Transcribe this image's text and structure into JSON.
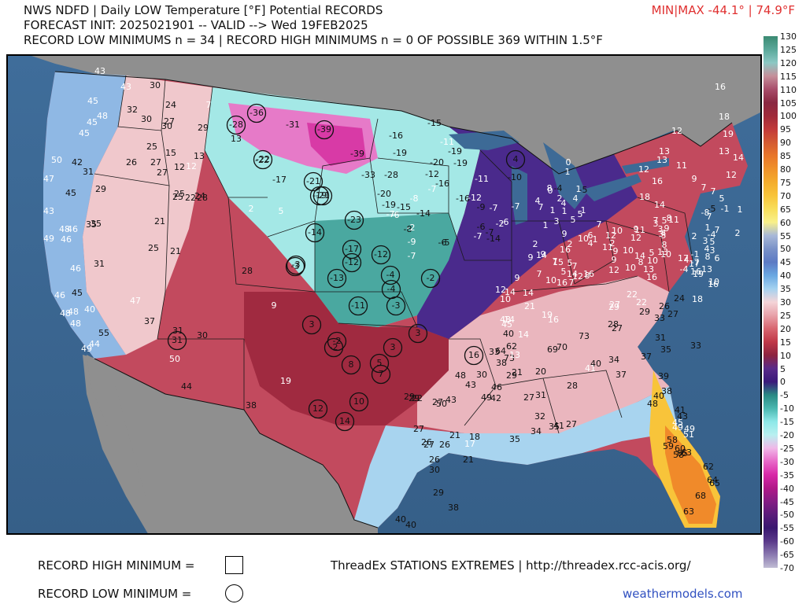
{
  "header": {
    "title": "NWS NDFD | Daily LOW Temperature [°F] Potential RECORDS",
    "forecast_line": "FORECAST INIT: 2025021901 -- VALID --> Wed 19FEB2025",
    "record_line": "RECORD LOW MINIMUMS n = 34 | RECORD HIGH MINIMUMS n = 0 OF POSSIBLE 369 WITHIN 1.5°F",
    "minmax": "MIN|MAX -44.1° | 74.9°F"
  },
  "legend": {
    "record_high_label": "RECORD HIGH MINIMUM =",
    "record_low_label": "RECORD LOW MINIMUM =",
    "credit": "ThreadEx STATIONS EXTREMES | http://threadex.rcc-acis.org/",
    "brand": "weathermodels.com"
  },
  "colorbar": {
    "ticks": [
      "130",
      "125",
      "120",
      "115",
      "110",
      "105",
      "100",
      "95",
      "90",
      "85",
      "80",
      "75",
      "70",
      "65",
      "60",
      "55",
      "50",
      "45",
      "40",
      "35",
      "30",
      "25",
      "20",
      "15",
      "10",
      "5",
      "0",
      "-5",
      "-10",
      "-15",
      "-20",
      "-25",
      "-30",
      "-35",
      "-40",
      "-45",
      "-50",
      "-55",
      "-60",
      "-65",
      "-70"
    ],
    "colors": [
      "#3a8a72",
      "#5aa89a",
      "#8cc8c4",
      "#c58f9a",
      "#a84d6a",
      "#8a2842",
      "#a02a3a",
      "#c23a3a",
      "#d45a32",
      "#e8762a",
      "#f0922a",
      "#f4ad2c",
      "#f8c43a",
      "#f8de5a",
      "#f8f08a",
      "#a8b8d8",
      "#7a92c8",
      "#5c7ac4",
      "#6aa8e2",
      "#a4d2f0",
      "#f4d4d8",
      "#e8a2aa",
      "#d86670",
      "#c03848",
      "#8e2440",
      "#5a2a8a",
      "#3a1a7a",
      "#2a8a84",
      "#4ab8b0",
      "#8ee8e8",
      "#b8f0f0",
      "#f0b8e8",
      "#e868c8",
      "#d828a8",
      "#b01888",
      "#841c84",
      "#5a1c7a",
      "#3a1870",
      "#5a3a8a",
      "#8a78b0",
      "#c0bcd4"
    ]
  },
  "stations": [
    {
      "v": "43",
      "c": "w"
    },
    {
      "v": "43",
      "c": "w"
    },
    {
      "v": "45",
      "c": "w"
    },
    {
      "v": "48",
      "c": "w"
    },
    {
      "v": "45",
      "c": "w"
    },
    {
      "v": "45",
      "c": "w"
    },
    {
      "v": "50",
      "c": "w"
    },
    {
      "v": "47",
      "c": "w"
    },
    {
      "v": "42",
      "c": "b"
    },
    {
      "v": "31",
      "c": "b"
    },
    {
      "v": "45",
      "c": "b"
    },
    {
      "v": "43",
      "c": "w"
    },
    {
      "v": "35",
      "c": "b"
    },
    {
      "v": "29",
      "c": "b"
    },
    {
      "v": "48",
      "c": "w"
    },
    {
      "v": "46",
      "c": "w"
    },
    {
      "v": "49",
      "c": "w"
    },
    {
      "v": "46",
      "c": "w"
    },
    {
      "v": "35",
      "c": "b"
    },
    {
      "v": "31",
      "c": "b"
    },
    {
      "v": "46",
      "c": "w"
    },
    {
      "v": "45",
      "c": "b"
    },
    {
      "v": "46",
      "c": "w"
    },
    {
      "v": "40",
      "c": "w"
    },
    {
      "v": "48",
      "c": "w"
    },
    {
      "v": "48",
      "c": "w"
    },
    {
      "v": "55",
      "c": "b"
    },
    {
      "v": "44",
      "c": "w"
    },
    {
      "v": "49",
      "c": "w"
    },
    {
      "v": "48",
      "c": "w"
    },
    {
      "v": "37",
      "c": "b"
    },
    {
      "v": "47",
      "c": "w"
    },
    {
      "v": "30",
      "c": "b"
    },
    {
      "v": "32",
      "c": "b"
    },
    {
      "v": "24",
      "c": "b"
    },
    {
      "v": "30",
      "c": "b"
    },
    {
      "v": "27",
      "c": "b"
    },
    {
      "v": "30",
      "c": "b"
    },
    {
      "v": "25",
      "c": "b"
    },
    {
      "v": "15",
      "c": "b"
    },
    {
      "v": "26",
      "c": "b"
    },
    {
      "v": "27",
      "c": "b"
    },
    {
      "v": "27",
      "c": "b"
    },
    {
      "v": "12",
      "c": "b"
    },
    {
      "v": "13",
      "c": "b"
    },
    {
      "v": "12",
      "c": "w"
    },
    {
      "v": "7",
      "c": "w"
    },
    {
      "v": "29",
      "c": "b"
    },
    {
      "v": "25",
      "c": "b"
    },
    {
      "v": "22",
      "c": "b"
    },
    {
      "v": "24",
      "c": "b"
    },
    {
      "v": "25",
      "c": "b"
    },
    {
      "v": "28",
      "c": "b"
    },
    {
      "v": "21",
      "c": "b"
    },
    {
      "v": "25",
      "c": "b"
    },
    {
      "v": "21",
      "c": "b"
    },
    {
      "v": "30",
      "c": "b"
    },
    {
      "v": "31",
      "c": "b"
    },
    {
      "v": "50",
      "c": "w"
    },
    {
      "v": "28",
      "c": "b"
    },
    {
      "v": "9",
      "c": "w"
    },
    {
      "v": "19",
      "c": "w"
    },
    {
      "v": "44",
      "c": "b"
    },
    {
      "v": "38",
      "c": "b"
    },
    {
      "v": "13",
      "c": "b"
    },
    {
      "v": "-31",
      "c": "b"
    },
    {
      "v": "-22",
      "c": "b"
    },
    {
      "v": "-17",
      "c": "b"
    },
    {
      "v": "2",
      "c": "w"
    },
    {
      "v": "5",
      "c": "w"
    },
    {
      "v": "-39",
      "c": "b"
    },
    {
      "v": "-33",
      "c": "b"
    },
    {
      "v": "-16",
      "c": "b"
    },
    {
      "v": "-19",
      "c": "b"
    },
    {
      "v": "-28",
      "c": "b"
    },
    {
      "v": "-20",
      "c": "b"
    },
    {
      "v": "-19",
      "c": "b"
    },
    {
      "v": "-15",
      "c": "b"
    },
    {
      "v": "-14",
      "c": "b"
    },
    {
      "v": "-15",
      "c": "b"
    },
    {
      "v": "-11",
      "c": "w"
    },
    {
      "v": "-19",
      "c": "b"
    },
    {
      "v": "-19",
      "c": "b"
    },
    {
      "v": "-20",
      "c": "b"
    },
    {
      "v": "-12",
      "c": "b"
    },
    {
      "v": "-16",
      "c": "b"
    },
    {
      "v": "-16",
      "c": "b"
    },
    {
      "v": "-12",
      "c": "w"
    },
    {
      "v": "-11",
      "c": "w"
    },
    {
      "v": "-10",
      "c": "b"
    },
    {
      "v": "-9",
      "c": "b"
    },
    {
      "v": "-8",
      "c": "b"
    },
    {
      "v": "-7",
      "c": "w"
    },
    {
      "v": "-6",
      "c": "b"
    },
    {
      "v": "-5",
      "c": "b"
    },
    {
      "v": "-7",
      "c": "b"
    },
    {
      "v": "-6",
      "c": "b"
    },
    {
      "v": "-7",
      "c": "w"
    },
    {
      "v": "-14",
      "c": "b"
    },
    {
      "v": "-7",
      "c": "w"
    },
    {
      "v": "-2",
      "c": "w"
    },
    {
      "v": "-7",
      "c": "w"
    },
    {
      "v": "-6",
      "c": "w"
    },
    {
      "v": "-7",
      "c": "w"
    },
    {
      "v": "-9",
      "c": "w"
    },
    {
      "v": "-6",
      "c": "w"
    },
    {
      "v": "-7",
      "c": "w"
    },
    {
      "v": "-2",
      "c": "w"
    },
    {
      "v": "-8",
      "c": "w"
    },
    {
      "v": "-4",
      "c": "b"
    },
    {
      "v": "-5",
      "c": "b"
    },
    {
      "v": "0",
      "c": "w"
    },
    {
      "v": "2",
      "c": "w"
    },
    {
      "v": "1",
      "c": "w"
    },
    {
      "v": "4",
      "c": "w"
    },
    {
      "v": "1",
      "c": "w"
    },
    {
      "v": "7",
      "c": "w"
    },
    {
      "v": "3",
      "c": "w"
    },
    {
      "v": "5",
      "c": "w"
    },
    {
      "v": "4",
      "c": "w"
    },
    {
      "v": "5",
      "c": "w"
    },
    {
      "v": "4",
      "c": "w"
    },
    {
      "v": "8",
      "c": "w"
    },
    {
      "v": "1",
      "c": "w"
    },
    {
      "v": "0",
      "c": "w"
    },
    {
      "v": "1",
      "c": "w"
    },
    {
      "v": "1",
      "c": "w"
    },
    {
      "v": "2",
      "c": "w"
    },
    {
      "v": "4",
      "c": "w"
    },
    {
      "v": "2",
      "c": "w"
    },
    {
      "v": "1",
      "c": "w"
    },
    {
      "v": "9",
      "c": "w"
    },
    {
      "v": "6",
      "c": "w"
    },
    {
      "v": "1",
      "c": "w"
    },
    {
      "v": "2",
      "c": "w"
    },
    {
      "v": "9",
      "c": "w"
    },
    {
      "v": "10",
      "c": "w"
    },
    {
      "v": "14",
      "c": "w"
    },
    {
      "v": "8",
      "c": "w"
    },
    {
      "v": "9",
      "c": "w"
    },
    {
      "v": "11",
      "c": "w"
    },
    {
      "v": "12",
      "c": "w"
    },
    {
      "v": "16",
      "c": "w"
    },
    {
      "v": "15",
      "c": "w"
    },
    {
      "v": "14",
      "c": "w"
    },
    {
      "v": "16",
      "c": "w"
    },
    {
      "v": "14",
      "c": "w"
    },
    {
      "v": "16",
      "c": "w"
    },
    {
      "v": "12",
      "c": "w"
    },
    {
      "v": "10",
      "c": "w"
    },
    {
      "v": "10",
      "c": "w"
    },
    {
      "v": "10",
      "c": "w"
    },
    {
      "v": "8",
      "c": "w"
    },
    {
      "v": "5",
      "c": "w"
    },
    {
      "v": "3",
      "c": "w"
    },
    {
      "v": "5",
      "c": "w"
    },
    {
      "v": "7",
      "c": "w"
    },
    {
      "v": "4",
      "c": "w"
    },
    {
      "v": "3",
      "c": "w"
    },
    {
      "v": "8",
      "c": "w"
    },
    {
      "v": "3",
      "c": "w"
    },
    {
      "v": "5",
      "c": "w"
    },
    {
      "v": "13",
      "c": "w"
    },
    {
      "v": "11",
      "c": "w"
    },
    {
      "v": "13",
      "c": "w"
    },
    {
      "v": "16",
      "c": "w"
    },
    {
      "v": "17",
      "c": "w"
    },
    {
      "v": "17",
      "c": "w"
    },
    {
      "v": "19",
      "c": "w"
    },
    {
      "v": "16",
      "c": "w"
    },
    {
      "v": "18",
      "c": "w"
    },
    {
      "v": "24",
      "c": "b"
    },
    {
      "v": "26",
      "c": "b"
    },
    {
      "v": "22",
      "c": "w"
    },
    {
      "v": "22",
      "c": "w"
    },
    {
      "v": "27",
      "c": "w"
    },
    {
      "v": "29",
      "c": "w"
    },
    {
      "v": "29",
      "c": "b"
    },
    {
      "v": "28",
      "c": "b"
    },
    {
      "v": "27",
      "c": "b"
    },
    {
      "v": "27",
      "c": "b"
    },
    {
      "v": "33",
      "c": "b"
    },
    {
      "v": "31",
      "c": "b"
    },
    {
      "v": "33",
      "c": "b"
    },
    {
      "v": "35",
      "c": "b"
    },
    {
      "v": "37",
      "c": "b"
    },
    {
      "v": "40",
      "c": "b"
    },
    {
      "v": "41",
      "c": "w"
    },
    {
      "v": "34",
      "c": "b"
    },
    {
      "v": "37",
      "c": "b"
    },
    {
      "v": "39",
      "c": "b"
    },
    {
      "v": "38",
      "c": "b"
    },
    {
      "v": "40",
      "c": "b"
    },
    {
      "v": "48",
      "c": "b"
    },
    {
      "v": "41",
      "c": "b"
    },
    {
      "v": "43",
      "c": "b"
    },
    {
      "v": "45",
      "c": "w"
    },
    {
      "v": "49",
      "c": "w"
    },
    {
      "v": "49",
      "c": "w"
    },
    {
      "v": "51",
      "c": "w"
    },
    {
      "v": "58",
      "c": "b"
    },
    {
      "v": "59",
      "c": "b"
    },
    {
      "v": "60",
      "c": "b"
    },
    {
      "v": "62",
      "c": "b"
    },
    {
      "v": "65",
      "c": "b"
    },
    {
      "v": "58",
      "c": "b"
    },
    {
      "v": "63",
      "c": "b"
    },
    {
      "v": "64",
      "c": "b"
    },
    {
      "v": "65",
      "c": "b"
    },
    {
      "v": "68",
      "c": "b"
    },
    {
      "v": "63",
      "c": "b"
    },
    {
      "v": "62",
      "c": "b"
    },
    {
      "v": "64",
      "c": "b"
    },
    {
      "v": "69",
      "c": "b"
    },
    {
      "v": "70",
      "c": "b"
    },
    {
      "v": "73",
      "c": "b"
    },
    {
      "v": "73",
      "c": "b"
    },
    {
      "v": "21",
      "c": "b"
    },
    {
      "v": "20",
      "c": "b"
    },
    {
      "v": "28",
      "c": "b"
    },
    {
      "v": "29",
      "c": "b"
    },
    {
      "v": "31",
      "c": "b"
    },
    {
      "v": "27",
      "c": "b"
    },
    {
      "v": "32",
      "c": "b"
    },
    {
      "v": "35",
      "c": "b"
    },
    {
      "v": "41",
      "c": "b"
    },
    {
      "v": "27",
      "c": "b"
    },
    {
      "v": "34",
      "c": "b"
    },
    {
      "v": "35",
      "c": "b"
    },
    {
      "v": "42",
      "c": "b"
    },
    {
      "v": "46",
      "c": "b"
    },
    {
      "v": "48",
      "c": "b"
    },
    {
      "v": "49",
      "c": "b"
    },
    {
      "v": "43",
      "c": "b"
    },
    {
      "v": "50",
      "c": "b"
    },
    {
      "v": "27",
      "c": "b"
    },
    {
      "v": "29",
      "c": "b"
    },
    {
      "v": "22",
      "c": "b"
    },
    {
      "v": "29",
      "c": "b"
    },
    {
      "v": "27",
      "c": "b"
    },
    {
      "v": "26",
      "c": "b"
    },
    {
      "v": "27",
      "c": "b"
    },
    {
      "v": "21",
      "c": "b"
    },
    {
      "v": "17",
      "c": "w"
    },
    {
      "v": "18",
      "c": "b"
    },
    {
      "v": "21",
      "c": "b"
    },
    {
      "v": "26",
      "c": "b"
    },
    {
      "v": "26",
      "c": "b"
    },
    {
      "v": "30",
      "c": "b"
    },
    {
      "v": "29",
      "c": "b"
    },
    {
      "v": "38",
      "c": "b"
    },
    {
      "v": "40",
      "c": "b"
    },
    {
      "v": "40",
      "c": "b"
    },
    {
      "v": "43",
      "c": "b"
    },
    {
      "v": "30",
      "c": "b"
    },
    {
      "v": "33",
      "c": "b"
    },
    {
      "v": "38",
      "c": "b"
    },
    {
      "v": "40",
      "c": "b"
    },
    {
      "v": "45",
      "c": "w"
    },
    {
      "v": "48",
      "c": "w"
    },
    {
      "v": "13",
      "c": "w"
    },
    {
      "v": "14",
      "c": "w"
    },
    {
      "v": "14",
      "c": "w"
    },
    {
      "v": "16",
      "c": "w"
    },
    {
      "v": "19",
      "c": "w"
    },
    {
      "v": "21",
      "c": "w"
    },
    {
      "v": "14",
      "c": "w"
    },
    {
      "v": "12",
      "c": "w"
    },
    {
      "v": "10",
      "c": "w"
    },
    {
      "v": "14",
      "c": "w"
    },
    {
      "v": "9",
      "c": "w"
    },
    {
      "v": "7",
      "c": "w"
    },
    {
      "v": "9",
      "c": "w"
    },
    {
      "v": "9",
      "c": "w"
    },
    {
      "v": "7",
      "c": "w"
    },
    {
      "v": "5",
      "c": "w"
    },
    {
      "v": "7",
      "c": "w"
    },
    {
      "v": "5",
      "c": "w"
    },
    {
      "v": "7",
      "c": "w"
    },
    {
      "v": "10",
      "c": "w"
    },
    {
      "v": "12",
      "c": "w"
    },
    {
      "v": "8",
      "c": "w"
    },
    {
      "v": "11",
      "c": "w"
    },
    {
      "v": "12",
      "c": "w"
    },
    {
      "v": "10",
      "c": "w"
    },
    {
      "v": "10",
      "c": "w"
    },
    {
      "v": "7",
      "c": "w"
    },
    {
      "v": "9",
      "c": "w"
    },
    {
      "v": "9",
      "c": "w"
    },
    {
      "v": "13",
      "c": "w"
    },
    {
      "v": "12",
      "c": "w"
    },
    {
      "v": "14",
      "c": "w"
    },
    {
      "v": "18",
      "c": "w"
    },
    {
      "v": "16",
      "c": "w"
    },
    {
      "v": "13",
      "c": "w"
    },
    {
      "v": "12",
      "c": "w"
    },
    {
      "v": "16",
      "c": "w"
    },
    {
      "v": "18",
      "c": "w"
    },
    {
      "v": "19",
      "c": "w"
    },
    {
      "v": "13",
      "c": "w"
    },
    {
      "v": "14",
      "c": "w"
    },
    {
      "v": "12",
      "c": "w"
    },
    {
      "v": "11",
      "c": "w"
    },
    {
      "v": "9",
      "c": "w"
    },
    {
      "v": "7",
      "c": "w"
    },
    {
      "v": "7",
      "c": "w"
    },
    {
      "v": "5",
      "c": "w"
    },
    {
      "v": "-5",
      "c": "b"
    },
    {
      "v": "-8",
      "c": "w"
    },
    {
      "v": "-1",
      "c": "w"
    },
    {
      "v": "1",
      "c": "w"
    },
    {
      "v": "2",
      "c": "w"
    },
    {
      "v": "1",
      "c": "w"
    },
    {
      "v": "-4",
      "c": "w"
    },
    {
      "v": "3",
      "c": "w"
    },
    {
      "v": "7",
      "c": "w"
    },
    {
      "v": "5",
      "c": "w"
    },
    {
      "v": "7",
      "c": "w"
    },
    {
      "v": "3",
      "c": "w"
    },
    {
      "v": "6",
      "c": "w"
    },
    {
      "v": "4",
      "c": "w"
    },
    {
      "v": "8",
      "c": "w"
    },
    {
      "v": "10",
      "c": "w"
    },
    {
      "v": "13",
      "c": "w"
    },
    {
      "v": "16",
      "c": "w"
    },
    {
      "v": "-7",
      "c": "w"
    },
    {
      "v": "-4",
      "c": "w"
    },
    {
      "v": "-1",
      "c": "w"
    },
    {
      "v": "4",
      "c": "w"
    },
    {
      "v": "2",
      "c": "w"
    }
  ],
  "record_lows": [
    "-36",
    "-28",
    "-39",
    "-22",
    "-21",
    "-21",
    "-19",
    "-23",
    "-14",
    "-17",
    "-12",
    "-12",
    "-13",
    "-3",
    "-4",
    "-4",
    "-3",
    "-11",
    "-2",
    "-3",
    "-2",
    "-2",
    "3",
    "3",
    "3",
    "8",
    "5",
    "7",
    "12",
    "10",
    "14",
    "16",
    "4",
    "31"
  ]
}
